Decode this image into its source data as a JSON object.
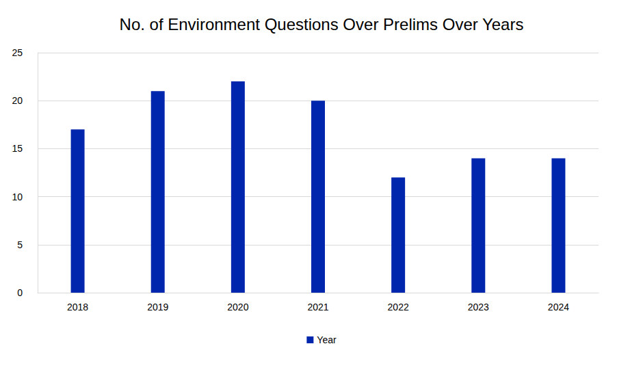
{
  "chart_data": {
    "type": "bar",
    "title": "No. of Environment Questions Over Prelims Over Years",
    "categories": [
      "2018",
      "2019",
      "2020",
      "2021",
      "2022",
      "2023",
      "2024"
    ],
    "series": [
      {
        "name": "Year",
        "color": "#0026ad",
        "values": [
          17,
          21,
          22,
          20,
          12,
          14,
          14
        ]
      }
    ],
    "ylim": [
      0,
      25
    ],
    "yticks": [
      0,
      5,
      10,
      15,
      20,
      25
    ],
    "grid": true,
    "legend": "bottom"
  }
}
